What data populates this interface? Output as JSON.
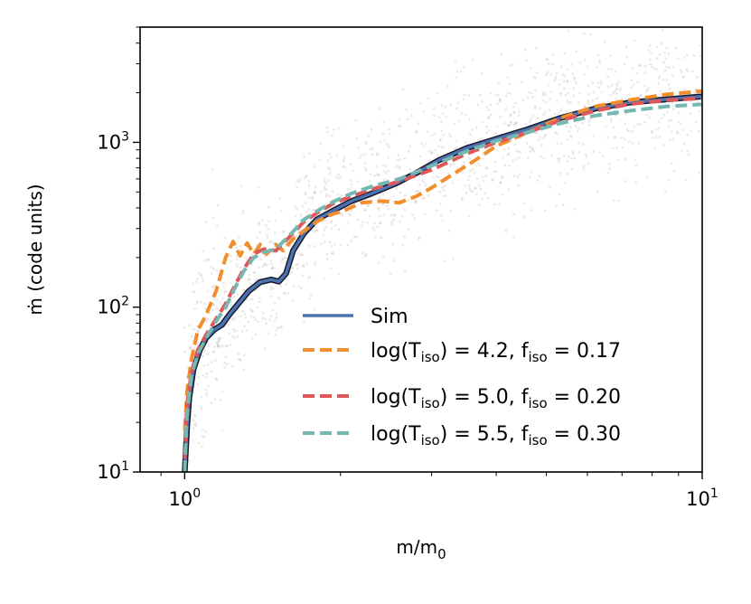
{
  "chart_data": {
    "type": "line",
    "title": "",
    "xlabel": {
      "base": "m/m",
      "sub": "0"
    },
    "ylabel": "ṁ (code units)",
    "xscale": "log",
    "yscale": "log",
    "xlim": [
      0.82,
      10
    ],
    "ylim": [
      10,
      5000
    ],
    "x_ticks": [
      {
        "value": 1,
        "base": "10",
        "exp": "0"
      },
      {
        "value": 10,
        "base": "10",
        "exp": "1"
      }
    ],
    "y_ticks": [
      {
        "value": 10,
        "base": "10",
        "exp": "1"
      },
      {
        "value": 100,
        "base": "10",
        "exp": "2"
      },
      {
        "value": 1000,
        "base": "10",
        "exp": "3"
      }
    ],
    "legend_position": "lower-right",
    "background_scatter": {
      "description": "simulation particles",
      "color": "#b8b0b0"
    },
    "series": [
      {
        "name": "Sim",
        "style": "solid",
        "color": "#4c72b0",
        "outline": "#1a1a2e",
        "legend": {
          "text": "Sim"
        },
        "x": [
          1.0,
          1.01,
          1.02,
          1.04,
          1.07,
          1.1,
          1.14,
          1.18,
          1.22,
          1.27,
          1.33,
          1.4,
          1.47,
          1.52,
          1.57,
          1.62,
          1.7,
          1.8,
          1.95,
          2.1,
          2.3,
          2.55,
          2.8,
          3.1,
          3.5,
          4.0,
          4.6,
          5.3,
          6.2,
          7.3,
          8.5,
          10.0
        ],
        "y": [
          10,
          18,
          28,
          42,
          55,
          65,
          73,
          78,
          90,
          105,
          125,
          142,
          147,
          143,
          160,
          220,
          280,
          340,
          390,
          440,
          490,
          560,
          650,
          780,
          920,
          1050,
          1200,
          1400,
          1600,
          1750,
          1820,
          1900
        ]
      },
      {
        "name": "log(T_iso) = 4.2, f_iso = 0.17",
        "style": "dashed",
        "color": "#f28e2b",
        "legend": {
          "pre": "log(T",
          "sub1": "iso",
          "mid": ") = 4.2, f",
          "sub2": "iso",
          "post": " = 0.17"
        },
        "x": [
          1.0,
          1.01,
          1.03,
          1.06,
          1.1,
          1.15,
          1.2,
          1.24,
          1.28,
          1.32,
          1.36,
          1.4,
          1.44,
          1.5,
          1.55,
          1.62,
          1.7,
          1.8,
          1.9,
          2.05,
          2.2,
          2.4,
          2.6,
          2.8,
          3.0,
          3.3,
          3.6,
          4.0,
          4.6,
          5.3,
          6.2,
          7.2,
          8.5,
          10.0
        ],
        "y": [
          18,
          30,
          48,
          72,
          90,
          125,
          200,
          250,
          205,
          245,
          210,
          240,
          210,
          240,
          220,
          260,
          290,
          330,
          360,
          390,
          430,
          440,
          430,
          470,
          530,
          640,
          760,
          950,
          1150,
          1400,
          1650,
          1800,
          1950,
          2050
        ]
      },
      {
        "name": "log(T_iso) = 5.0, f_iso = 0.20",
        "style": "dashed",
        "color": "#e15759",
        "legend": {
          "pre": "log(T",
          "sub1": "iso",
          "mid": ") = 5.0, f",
          "sub2": "iso",
          "post": " = 0.20"
        },
        "x": [
          1.0,
          1.01,
          1.03,
          1.06,
          1.1,
          1.15,
          1.2,
          1.25,
          1.3,
          1.36,
          1.42,
          1.5,
          1.6,
          1.7,
          1.82,
          1.95,
          2.1,
          2.3,
          2.6,
          3.0,
          3.5,
          4.0,
          4.6,
          5.3,
          6.2,
          7.2,
          8.5,
          10.0
        ],
        "y": [
          12,
          25,
          40,
          55,
          68,
          85,
          105,
          135,
          170,
          210,
          225,
          220,
          270,
          330,
          380,
          430,
          470,
          520,
          580,
          680,
          850,
          1000,
          1150,
          1350,
          1550,
          1700,
          1800,
          1850
        ]
      },
      {
        "name": "log(T_iso) = 5.5, f_iso = 0.30",
        "style": "dashed",
        "color": "#76b7b2",
        "legend": {
          "pre": "log(T",
          "sub1": "iso",
          "mid": ") = 5.5, f",
          "sub2": "iso",
          "post": " = 0.30"
        },
        "x": [
          1.0,
          1.01,
          1.03,
          1.06,
          1.1,
          1.15,
          1.2,
          1.25,
          1.3,
          1.36,
          1.42,
          1.5,
          1.6,
          1.7,
          1.82,
          1.95,
          2.1,
          2.3,
          2.6,
          3.0,
          3.5,
          4.0,
          4.6,
          5.3,
          6.2,
          7.2,
          8.5,
          10.0
        ],
        "y": [
          10,
          22,
          38,
          52,
          65,
          82,
          100,
          130,
          165,
          200,
          215,
          225,
          275,
          340,
          390,
          440,
          490,
          540,
          600,
          720,
          880,
          1020,
          1150,
          1300,
          1450,
          1550,
          1650,
          1700
        ]
      }
    ]
  }
}
